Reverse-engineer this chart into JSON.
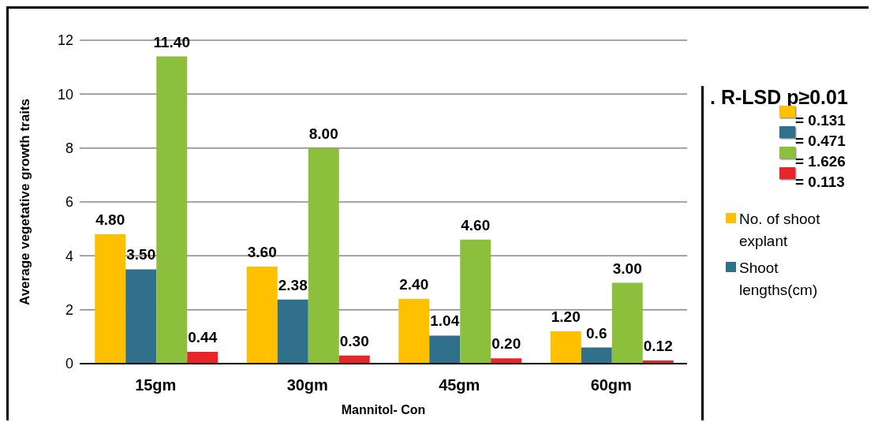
{
  "chart_data": {
    "type": "bar",
    "xlabel": "Mannitol- Con",
    "ylabel": "Average vegetative growth traits",
    "categories": [
      "15gm",
      "30gm",
      "45gm",
      "60gm"
    ],
    "series": [
      {
        "name": "No. of shoot explant",
        "color": "#ffc000",
        "values": [
          4.8,
          3.6,
          2.4,
          1.2
        ],
        "value_labels": [
          "4.80",
          "3.60",
          "2.40",
          "1.20"
        ]
      },
      {
        "name": "Shoot lengths(cm)",
        "color": "#31708a",
        "values": [
          3.5,
          2.38,
          1.04,
          0.6
        ],
        "value_labels": [
          "3.50",
          "2.38",
          "1.04",
          "0.6"
        ]
      },
      {
        "color": "#8cbf3c",
        "values": [
          11.4,
          8.0,
          4.6,
          3.0
        ],
        "value_labels": [
          "11.40",
          "8.00",
          "4.60",
          "3.00"
        ]
      },
      {
        "color": "#e8262a",
        "values": [
          0.44,
          0.3,
          0.2,
          0.12
        ],
        "value_labels": [
          "0.44",
          "0.30",
          "0.20",
          "0.12"
        ]
      }
    ],
    "ylim": [
      0,
      12
    ],
    "yticks": [
      0,
      2,
      4,
      6,
      8,
      10,
      12
    ],
    "grid": "y",
    "legend": "right",
    "annotations": [
      ". R-LSD p≥0.01",
      "= 0.131",
      "= 0.471",
      "= 1.626",
      "= 0.113"
    ]
  }
}
